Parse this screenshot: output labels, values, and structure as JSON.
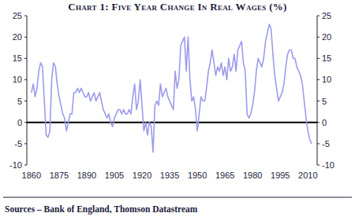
{
  "chart_data": {
    "type": "line",
    "title": "Chart 1: Five Year Change In Real Wages (%)",
    "source": "Sources – Bank of England, Thomson Datastream",
    "color": "#9c9cec",
    "x": [
      1860,
      1861,
      1862,
      1863,
      1864,
      1865,
      1866,
      1867,
      1868,
      1869,
      1870,
      1871,
      1872,
      1873,
      1874,
      1875,
      1876,
      1877,
      1878,
      1879,
      1880,
      1881,
      1882,
      1883,
      1884,
      1885,
      1886,
      1887,
      1888,
      1889,
      1890,
      1891,
      1892,
      1893,
      1894,
      1895,
      1896,
      1897,
      1898,
      1899,
      1900,
      1901,
      1902,
      1903,
      1904,
      1905,
      1906,
      1907,
      1908,
      1909,
      1910,
      1911,
      1912,
      1913,
      1914,
      1915,
      1916,
      1917,
      1918,
      1919,
      1920,
      1921,
      1922,
      1923,
      1924,
      1925,
      1926,
      1927,
      1928,
      1929,
      1930,
      1931,
      1932,
      1933,
      1934,
      1935,
      1936,
      1937,
      1938,
      1939,
      1940,
      1941,
      1942,
      1943,
      1944,
      1945,
      1946,
      1947,
      1948,
      1949,
      1950,
      1951,
      1952,
      1953,
      1954,
      1955,
      1956,
      1957,
      1958,
      1959,
      1960,
      1961,
      1962,
      1963,
      1964,
      1965,
      1966,
      1967,
      1968,
      1969,
      1970,
      1971,
      1972,
      1973,
      1974,
      1975,
      1976,
      1977,
      1978,
      1979,
      1980,
      1981,
      1982,
      1983,
      1984,
      1985,
      1986,
      1987,
      1988,
      1989,
      1990,
      1991,
      1992,
      1993,
      1994,
      1995,
      1996,
      1997,
      1998,
      1999,
      2000,
      2001,
      2002,
      2003,
      2004,
      2005,
      2006,
      2007,
      2008,
      2009,
      2010,
      2011,
      2012
    ],
    "values": [
      7,
      9,
      6,
      8,
      12,
      14,
      13,
      5,
      -3,
      -3.5,
      -2,
      10,
      14,
      13,
      9,
      6,
      4,
      2,
      1,
      -2,
      0,
      2,
      2,
      7,
      7,
      8,
      7,
      8,
      7,
      6,
      6,
      7,
      5,
      6,
      7,
      5,
      6,
      7,
      5,
      3,
      2,
      1,
      2,
      0,
      -1,
      1,
      2,
      3,
      3,
      2,
      3,
      2,
      2,
      3,
      2,
      6,
      9,
      3,
      5,
      10,
      4,
      -2,
      0,
      -3,
      0,
      -1,
      -7,
      4,
      5,
      4,
      9,
      6,
      7,
      8,
      6,
      5,
      4,
      3,
      12,
      8,
      10,
      18,
      19,
      20,
      12,
      20,
      10,
      5,
      6,
      3,
      -2,
      2,
      6,
      5,
      5,
      8,
      12,
      14,
      17,
      14,
      11,
      13,
      12,
      14,
      11,
      13,
      10,
      15,
      12,
      13,
      16,
      12,
      17,
      18,
      19,
      14,
      12,
      2,
      1,
      2,
      4,
      7,
      12,
      15,
      14,
      13,
      15,
      19,
      21,
      23,
      22,
      16,
      11,
      8,
      5,
      6,
      7,
      9,
      13,
      16,
      17,
      17,
      15,
      15,
      13,
      12,
      11,
      9,
      5,
      1,
      -2,
      -4,
      -5
    ],
    "xlim": [
      1857.5,
      2015
    ],
    "xticks": [
      1860,
      1875,
      1890,
      1905,
      1920,
      1935,
      1950,
      1965,
      1980,
      1995,
      2010
    ],
    "ylim": [
      -10,
      25
    ],
    "yticks": [
      -10,
      -5,
      0,
      5,
      10,
      15,
      20,
      25
    ],
    "grid": false
  }
}
